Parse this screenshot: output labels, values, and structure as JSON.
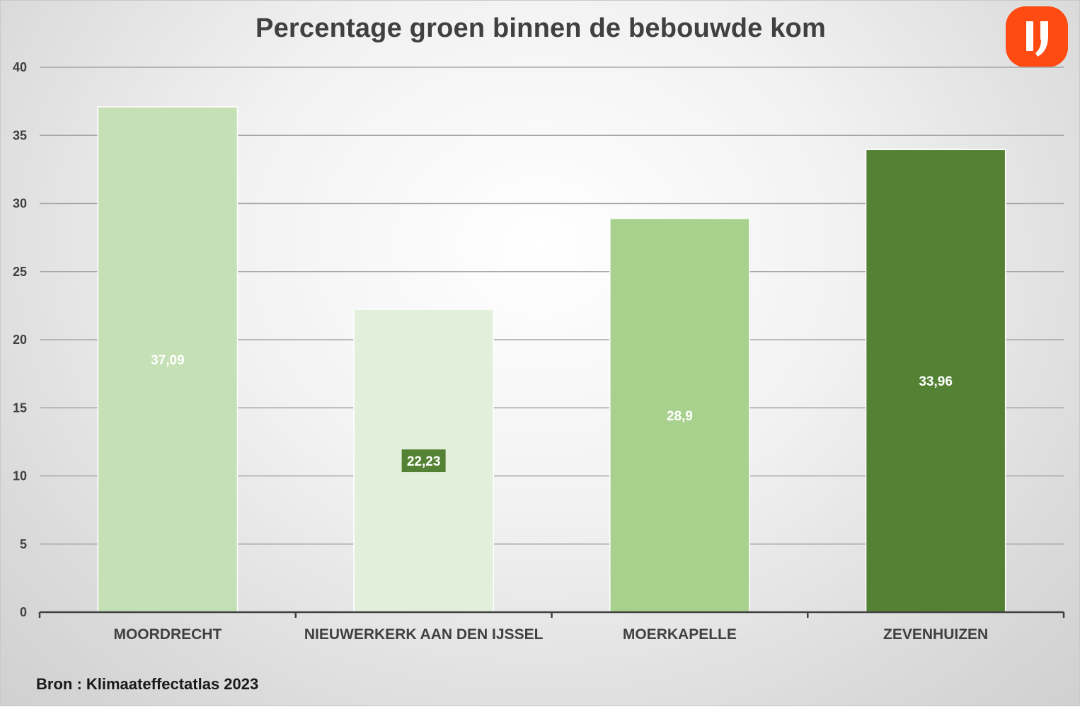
{
  "chart_data": {
    "type": "bar",
    "title": "Percentage groen binnen de bebouwde kom",
    "categories": [
      "MOORDRECHT",
      "NIEUWERKERK AAN DEN IJSSEL",
      "MOERKAPELLE",
      "ZEVENHUIZEN"
    ],
    "values": [
      37.09,
      22.23,
      28.9,
      33.96
    ],
    "data_labels": [
      "37,09",
      "22,23",
      "28,9",
      "33,96"
    ],
    "bar_colors": [
      "#c5e0b4",
      "#e2efda",
      "#a9d18e",
      "#548235"
    ],
    "data_label_box_colors": [
      null,
      "#548235",
      null,
      null
    ],
    "ylim": [
      0,
      40
    ],
    "yticks": [
      0,
      5,
      10,
      15,
      20,
      25,
      30,
      35,
      40
    ],
    "grid": true,
    "legend": "none",
    "xlabel": "",
    "ylabel": ""
  },
  "source_note": "Bron : Klimaateffectatlas 2023",
  "logo": {
    "icon": "ij-logo-icon",
    "color": "#ff4a12"
  }
}
